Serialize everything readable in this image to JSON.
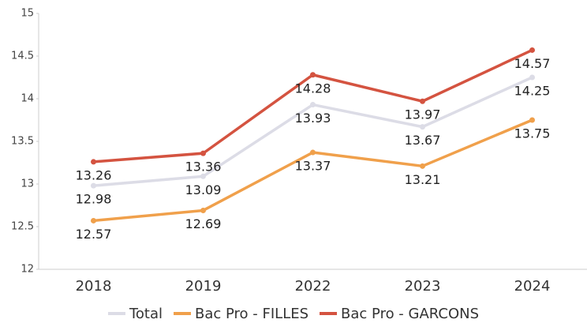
{
  "chart_data": {
    "type": "line",
    "categories": [
      "2018",
      "2019",
      "2022",
      "2023",
      "2024"
    ],
    "series": [
      {
        "name": "Total",
        "color": "#dcdce6",
        "values": [
          12.98,
          13.09,
          13.93,
          13.67,
          14.25
        ]
      },
      {
        "name": "Bac Pro - FILLES",
        "color": "#f0a04b",
        "values": [
          12.57,
          12.69,
          13.37,
          13.21,
          13.75
        ]
      },
      {
        "name": "Bac Pro - GARCONS",
        "color": "#d45340",
        "values": [
          13.26,
          13.36,
          14.28,
          13.97,
          14.57
        ]
      }
    ],
    "ylim": [
      12,
      15
    ],
    "yticks": [
      12,
      12.5,
      13,
      13.5,
      14,
      14.5,
      15
    ],
    "grid": false,
    "legend": "bottom"
  }
}
